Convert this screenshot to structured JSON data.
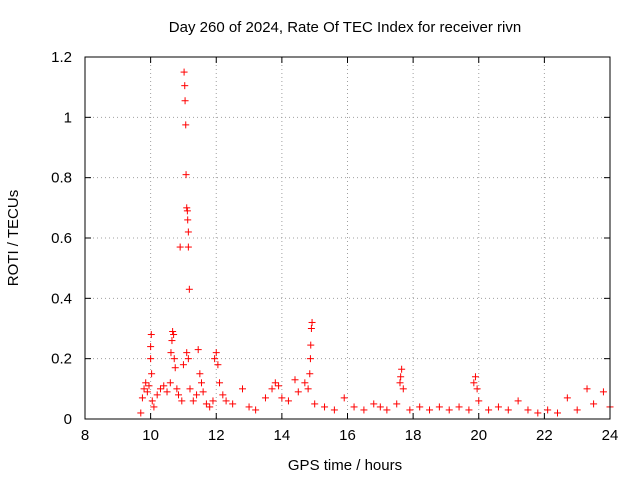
{
  "chart_data": {
    "type": "scatter",
    "title": "Day 260 of 2024, Rate Of TEC Index for receiver rivn",
    "xlabel": "GPS time / hours",
    "ylabel": "ROTI / TECUs",
    "xlim": [
      8,
      24
    ],
    "ylim": [
      0,
      1.2
    ],
    "xticks": [
      8,
      10,
      12,
      14,
      16,
      18,
      20,
      22,
      24
    ],
    "xtick_labels": [
      "8",
      "10",
      "12",
      "14",
      "16",
      "18",
      "20",
      "22",
      "24"
    ],
    "yticks": [
      0,
      0.2,
      0.4,
      0.6,
      0.8,
      1,
      1.2
    ],
    "ytick_labels": [
      "0",
      "0.2",
      "0.4",
      "0.6",
      "0.8",
      "1",
      "1.2"
    ],
    "grid": true,
    "marker": "+",
    "color": "#ff0000",
    "series": [
      {
        "name": "ROTI",
        "points": [
          [
            9.7,
            0.02
          ],
          [
            9.75,
            0.07
          ],
          [
            9.8,
            0.1
          ],
          [
            9.85,
            0.12
          ],
          [
            9.9,
            0.09
          ],
          [
            9.95,
            0.11
          ],
          [
            10.0,
            0.2
          ],
          [
            10.0,
            0.24
          ],
          [
            10.02,
            0.28
          ],
          [
            10.03,
            0.15
          ],
          [
            10.05,
            0.06
          ],
          [
            10.1,
            0.04
          ],
          [
            10.2,
            0.08
          ],
          [
            10.3,
            0.1
          ],
          [
            10.4,
            0.11
          ],
          [
            10.5,
            0.09
          ],
          [
            10.6,
            0.12
          ],
          [
            10.62,
            0.22
          ],
          [
            10.65,
            0.26
          ],
          [
            10.67,
            0.29
          ],
          [
            10.7,
            0.28
          ],
          [
            10.72,
            0.2
          ],
          [
            10.75,
            0.17
          ],
          [
            10.8,
            0.1
          ],
          [
            10.85,
            0.08
          ],
          [
            10.9,
            0.57
          ],
          [
            10.95,
            0.06
          ],
          [
            11.0,
            0.18
          ],
          [
            11.02,
            1.15
          ],
          [
            11.04,
            1.105
          ],
          [
            11.05,
            1.055
          ],
          [
            11.07,
            0.975
          ],
          [
            11.08,
            0.81
          ],
          [
            11.1,
            0.7
          ],
          [
            11.12,
            0.69
          ],
          [
            11.13,
            0.66
          ],
          [
            11.15,
            0.62
          ],
          [
            11.15,
            0.57
          ],
          [
            11.18,
            0.43
          ],
          [
            11.1,
            0.22
          ],
          [
            11.15,
            0.2
          ],
          [
            11.2,
            0.1
          ],
          [
            11.3,
            0.06
          ],
          [
            11.4,
            0.08
          ],
          [
            11.45,
            0.23
          ],
          [
            11.5,
            0.15
          ],
          [
            11.55,
            0.12
          ],
          [
            11.6,
            0.09
          ],
          [
            11.7,
            0.05
          ],
          [
            11.8,
            0.04
          ],
          [
            11.9,
            0.06
          ],
          [
            11.95,
            0.2
          ],
          [
            12.0,
            0.22
          ],
          [
            12.05,
            0.18
          ],
          [
            12.1,
            0.12
          ],
          [
            12.2,
            0.08
          ],
          [
            12.3,
            0.06
          ],
          [
            12.5,
            0.05
          ],
          [
            12.8,
            0.1
          ],
          [
            13.0,
            0.04
          ],
          [
            13.2,
            0.03
          ],
          [
            13.5,
            0.07
          ],
          [
            13.7,
            0.1
          ],
          [
            13.8,
            0.12
          ],
          [
            13.9,
            0.11
          ],
          [
            14.0,
            0.07
          ],
          [
            14.2,
            0.06
          ],
          [
            14.4,
            0.13
          ],
          [
            14.5,
            0.09
          ],
          [
            14.7,
            0.12
          ],
          [
            14.8,
            0.1
          ],
          [
            14.85,
            0.15
          ],
          [
            14.87,
            0.2
          ],
          [
            14.88,
            0.245
          ],
          [
            14.9,
            0.3
          ],
          [
            14.92,
            0.32
          ],
          [
            15.0,
            0.05
          ],
          [
            15.3,
            0.04
          ],
          [
            15.6,
            0.03
          ],
          [
            15.9,
            0.07
          ],
          [
            16.2,
            0.04
          ],
          [
            16.5,
            0.03
          ],
          [
            16.8,
            0.05
          ],
          [
            17.0,
            0.04
          ],
          [
            17.2,
            0.03
          ],
          [
            17.5,
            0.05
          ],
          [
            17.6,
            0.12
          ],
          [
            17.62,
            0.14
          ],
          [
            17.65,
            0.165
          ],
          [
            17.7,
            0.1
          ],
          [
            17.9,
            0.03
          ],
          [
            18.2,
            0.04
          ],
          [
            18.5,
            0.03
          ],
          [
            18.8,
            0.04
          ],
          [
            19.1,
            0.03
          ],
          [
            19.4,
            0.04
          ],
          [
            19.7,
            0.03
          ],
          [
            19.85,
            0.12
          ],
          [
            19.9,
            0.14
          ],
          [
            19.95,
            0.1
          ],
          [
            20.0,
            0.06
          ],
          [
            20.3,
            0.03
          ],
          [
            20.6,
            0.04
          ],
          [
            20.9,
            0.03
          ],
          [
            21.2,
            0.06
          ],
          [
            21.5,
            0.03
          ],
          [
            21.8,
            0.02
          ],
          [
            22.1,
            0.03
          ],
          [
            22.4,
            0.02
          ],
          [
            22.7,
            0.07
          ],
          [
            23.0,
            0.03
          ],
          [
            23.3,
            0.1
          ],
          [
            23.5,
            0.05
          ],
          [
            23.8,
            0.09
          ],
          [
            24.0,
            0.04
          ]
        ]
      }
    ]
  }
}
